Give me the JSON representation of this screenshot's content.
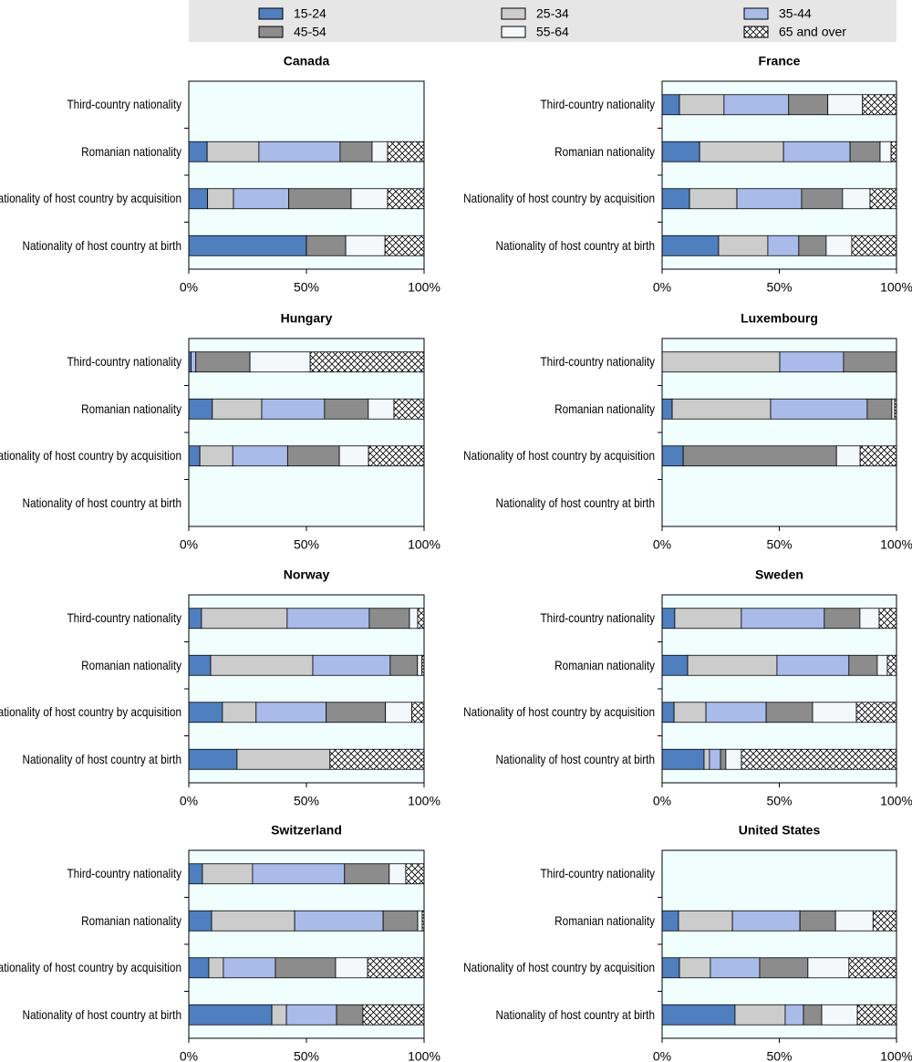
{
  "legend": {
    "series": [
      {
        "name": "15-24",
        "color": "#4f7fbf"
      },
      {
        "name": "25-34",
        "color": "#cccccc"
      },
      {
        "name": "35-44",
        "color": "#a9bbe9"
      },
      {
        "name": "45-54",
        "color": "#8c8c8c"
      },
      {
        "name": "55-64",
        "color": "#f4f8fb"
      },
      {
        "name": "65 and over",
        "color": "#ffffff",
        "pattern": "crosshatch"
      }
    ]
  },
  "chart_data": [
    {
      "type": "bar",
      "orientation": "horizontal",
      "stacked": true,
      "title": "Canada",
      "categories": [
        "Third-country nationality",
        "Romanian nationality",
        "Nationality of host country by acquisition",
        "Nationality of host country at birth"
      ],
      "series": [
        {
          "values": [
            null,
            7.8,
            8,
            50
          ]
        },
        {
          "values": [
            null,
            22,
            11,
            0
          ]
        },
        {
          "values": [
            null,
            34.5,
            23.5,
            0
          ]
        },
        {
          "values": [
            null,
            13.6,
            26.5,
            16.7
          ]
        },
        {
          "values": [
            null,
            6.6,
            15.5,
            16.7
          ]
        },
        {
          "values": [
            null,
            15.5,
            15.5,
            16.6
          ]
        }
      ],
      "xlim": [
        0,
        100
      ],
      "xticks": [
        {
          "value": 0,
          "label": "0%"
        },
        {
          "value": 50,
          "label": "50%"
        },
        {
          "value": 100,
          "label": "100%"
        }
      ]
    },
    {
      "type": "bar",
      "orientation": "horizontal",
      "stacked": true,
      "title": "France",
      "categories": [
        "Third-country nationality",
        "Romanian nationality",
        "Nationality of host country by acquisition",
        "Nationality of host country at birth"
      ],
      "series": [
        {
          "values": [
            7.4,
            16,
            11.7,
            24.1
          ]
        },
        {
          "values": [
            19,
            35.8,
            20.2,
            21
          ]
        },
        {
          "values": [
            27.6,
            28.4,
            27.6,
            13.2
          ]
        },
        {
          "values": [
            16.7,
            12.8,
            17.5,
            11.7
          ]
        },
        {
          "values": [
            14.8,
            4.7,
            11.7,
            10.9
          ]
        },
        {
          "values": [
            14.5,
            2.3,
            11.3,
            19.1
          ]
        }
      ],
      "xlim": [
        0,
        100
      ],
      "xticks": [
        {
          "value": 0,
          "label": "0%"
        },
        {
          "value": 50,
          "label": "50%"
        },
        {
          "value": 100,
          "label": "100%"
        }
      ]
    },
    {
      "type": "bar",
      "orientation": "horizontal",
      "stacked": true,
      "title": "Hungary",
      "categories": [
        "Third-country nationality",
        "Romanian nationality",
        "Nationality of host country by acquisition",
        "Nationality of host country at birth"
      ],
      "series": [
        {
          "values": [
            1,
            10,
            4.7,
            null
          ]
        },
        {
          "values": [
            0,
            21,
            14,
            null
          ]
        },
        {
          "values": [
            2,
            26.7,
            23.3,
            null
          ]
        },
        {
          "values": [
            23,
            18.6,
            22,
            null
          ]
        },
        {
          "values": [
            25.6,
            10.9,
            12.4,
            null
          ]
        },
        {
          "values": [
            48.4,
            12.8,
            23.6,
            null
          ]
        }
      ],
      "xlim": [
        0,
        100
      ],
      "xticks": [
        {
          "value": 0,
          "label": "0%"
        },
        {
          "value": 50,
          "label": "50%"
        },
        {
          "value": 100,
          "label": "100%"
        }
      ]
    },
    {
      "type": "bar",
      "orientation": "horizontal",
      "stacked": true,
      "title": "Luxembourg",
      "categories": [
        "Third-country nationality",
        "Romanian nationality",
        "Nationality of host country by acquisition",
        "Nationality of host country at birth"
      ],
      "series": [
        {
          "values": [
            0,
            4.3,
            9,
            null
          ]
        },
        {
          "values": [
            50.2,
            42,
            0,
            null
          ]
        },
        {
          "values": [
            27.2,
            41.2,
            0,
            null
          ]
        },
        {
          "values": [
            22.6,
            10.5,
            65.4,
            null
          ]
        },
        {
          "values": [
            0,
            1.2,
            10.1,
            null
          ]
        },
        {
          "values": [
            0,
            0.8,
            15.5,
            null
          ]
        }
      ],
      "xlim": [
        0,
        100
      ],
      "xticks": [
        {
          "value": 0,
          "label": "0%"
        },
        {
          "value": 50,
          "label": "50%"
        },
        {
          "value": 100,
          "label": "100%"
        }
      ]
    },
    {
      "type": "bar",
      "orientation": "horizontal",
      "stacked": true,
      "title": "Norway",
      "categories": [
        "Third-country nationality",
        "Romanian nationality",
        "Nationality of host country by acquisition",
        "Nationality of host country at birth"
      ],
      "series": [
        {
          "values": [
            5.4,
            9.3,
            14.3,
            20.5
          ]
        },
        {
          "values": [
            36.4,
            43.4,
            14.3,
            39.5
          ]
        },
        {
          "values": [
            34.9,
            32.9,
            29.8,
            0
          ]
        },
        {
          "values": [
            17.1,
            11.6,
            25.2,
            0
          ]
        },
        {
          "values": [
            3.5,
            1.9,
            11.2,
            0
          ]
        },
        {
          "values": [
            2.7,
            0.9,
            5.2,
            40
          ]
        }
      ],
      "xlim": [
        0,
        100
      ],
      "xticks": [
        {
          "value": 0,
          "label": "0%"
        },
        {
          "value": 50,
          "label": "50%"
        },
        {
          "value": 100,
          "label": "100%"
        }
      ]
    },
    {
      "type": "bar",
      "orientation": "horizontal",
      "stacked": true,
      "title": "Sweden",
      "categories": [
        "Third-country nationality",
        "Romanian nationality",
        "Nationality of host country by acquisition",
        "Nationality of host country at birth"
      ],
      "series": [
        {
          "values": [
            5.4,
            10.9,
            5.1,
            17.9
          ]
        },
        {
          "values": [
            28.4,
            38.1,
            13.6,
            2.3
          ]
        },
        {
          "values": [
            35.4,
            30.7,
            25.7,
            4.7
          ]
        },
        {
          "values": [
            15.2,
            12.1,
            19.8,
            2.3
          ]
        },
        {
          "values": [
            8.2,
            4.3,
            18.7,
            6.6
          ]
        },
        {
          "values": [
            7.4,
            3.9,
            17.1,
            66.2
          ]
        }
      ],
      "xlim": [
        0,
        100
      ],
      "xticks": [
        {
          "value": 0,
          "label": "0%"
        },
        {
          "value": 50,
          "label": "50%"
        },
        {
          "value": 100,
          "label": "100%"
        }
      ]
    },
    {
      "type": "bar",
      "orientation": "horizontal",
      "stacked": true,
      "title": "Switzerland",
      "categories": [
        "Third-country nationality",
        "Romanian nationality",
        "Nationality of host country by acquisition",
        "Nationality of host country at birth"
      ],
      "series": [
        {
          "values": [
            5.8,
            9.7,
            8.5,
            35.3
          ]
        },
        {
          "values": [
            21.3,
            35.3,
            6.2,
            6.2
          ]
        },
        {
          "values": [
            39.1,
            37.6,
            22.1,
            21.3
          ]
        },
        {
          "values": [
            19,
            14.7,
            25.6,
            11.2
          ]
        },
        {
          "values": [
            7,
            1.9,
            13.6,
            0
          ]
        },
        {
          "values": [
            7.8,
            0.8,
            24,
            26
          ]
        }
      ],
      "xlim": [
        0,
        100
      ],
      "xticks": [
        {
          "value": 0,
          "label": "0%"
        },
        {
          "value": 50,
          "label": "50%"
        },
        {
          "value": 100,
          "label": "100%"
        }
      ]
    },
    {
      "type": "bar",
      "orientation": "horizontal",
      "stacked": true,
      "title": "United States",
      "categories": [
        "Third-country nationality",
        "Romanian nationality",
        "Nationality of host country by acquisition",
        "Nationality of host country at birth"
      ],
      "series": [
        {
          "values": [
            null,
            7,
            7.4,
            31.1
          ]
        },
        {
          "values": [
            null,
            23,
            13.2,
            21.4
          ]
        },
        {
          "values": [
            null,
            28.8,
            21,
            7.8
          ]
        },
        {
          "values": [
            null,
            15.2,
            20.6,
            7.8
          ]
        },
        {
          "values": [
            null,
            16,
            17.5,
            15.2
          ]
        },
        {
          "values": [
            null,
            10,
            20.3,
            16.7
          ]
        }
      ],
      "xlim": [
        0,
        100
      ],
      "xticks": [
        {
          "value": 0,
          "label": "0%"
        },
        {
          "value": 50,
          "label": "50%"
        },
        {
          "value": 100,
          "label": "100%"
        }
      ]
    }
  ]
}
